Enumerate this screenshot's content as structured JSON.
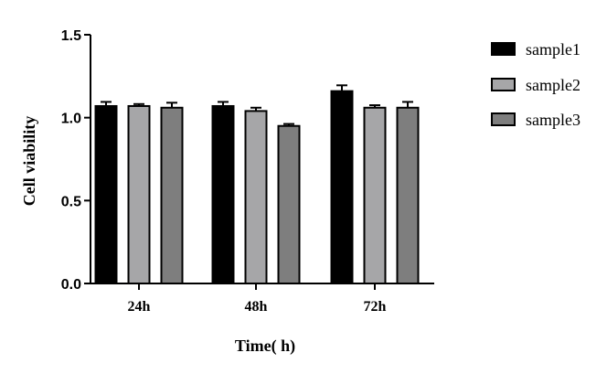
{
  "chart_data": {
    "type": "bar",
    "title": "",
    "xlabel": "Time( h)",
    "ylabel": "Cell viability",
    "categories": [
      "24h",
      "48h",
      "72h"
    ],
    "yticks": [
      "0.0",
      "0.5",
      "1.0",
      "1.5"
    ],
    "ylim": [
      0,
      1.5
    ],
    "grid": false,
    "legend_position": "right",
    "series": [
      {
        "name": "sample1",
        "color": "#000000",
        "values": [
          1.07,
          1.07,
          1.16
        ],
        "errors": [
          0.025,
          0.025,
          0.035
        ]
      },
      {
        "name": "sample2",
        "color": "#a6a6a8",
        "values": [
          1.07,
          1.04,
          1.06
        ],
        "errors": [
          0.012,
          0.02,
          0.015
        ]
      },
      {
        "name": "sample3",
        "color": "#7e7e7e",
        "values": [
          1.06,
          0.95,
          1.06
        ],
        "errors": [
          0.03,
          0.012,
          0.035
        ]
      }
    ]
  }
}
